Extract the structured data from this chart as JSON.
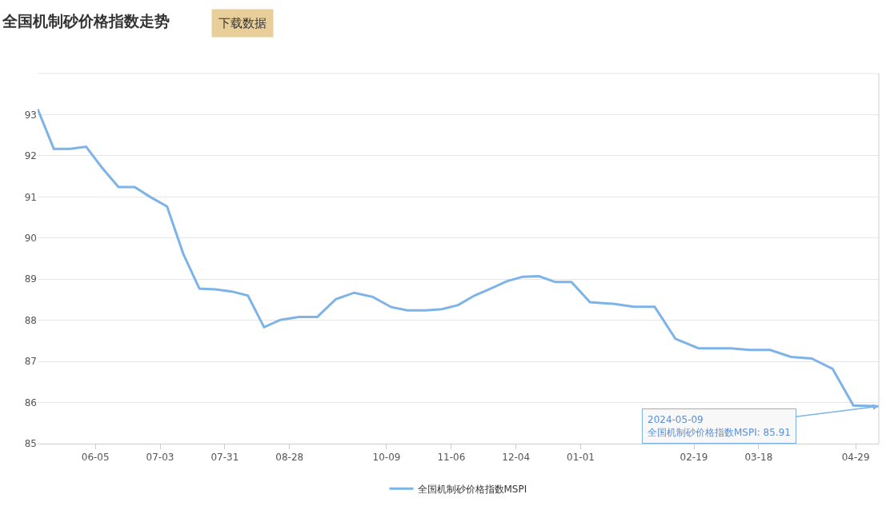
{
  "chart_data": {
    "type": "line",
    "title": "全国机制砂价格指数走势",
    "annotations": [
      "下载数据",
      {
        "text": "2024-05-09\n全国机制砂价格指数MSPI: 85.91",
        "x": "2024-05-09",
        "y": 85.91
      }
    ],
    "x": [
      "2023-05-11",
      "2023-05-18",
      "2023-05-25",
      "2023-06-01",
      "2023-06-08",
      "2023-06-15",
      "2023-06-22",
      "2023-06-29",
      "2023-07-06",
      "2023-07-13",
      "2023-07-20",
      "2023-07-27",
      "2023-08-03",
      "2023-08-10",
      "2023-08-17",
      "2023-08-24",
      "2023-09-01",
      "2023-09-09",
      "2023-09-17",
      "2023-09-25",
      "2023-10-03",
      "2023-10-11",
      "2023-10-18",
      "2023-10-26",
      "2023-11-02",
      "2023-11-09",
      "2023-11-16",
      "2023-11-23",
      "2023-11-30",
      "2023-12-07",
      "2023-12-14",
      "2023-12-21",
      "2023-12-28",
      "2024-01-05",
      "2024-01-15",
      "2024-01-24",
      "2024-02-02",
      "2024-02-11",
      "2024-02-21",
      "2024-02-28",
      "2024-03-06",
      "2024-03-14",
      "2024-03-23",
      "2024-04-01",
      "2024-04-10",
      "2024-04-19",
      "2024-04-28",
      "2024-05-09"
    ],
    "series": [
      {
        "name": "全国机制砂价格指数MSPI",
        "color": "#7eb3e8",
        "values": [
          93.14,
          92.17,
          92.17,
          92.22,
          91.7,
          91.24,
          91.24,
          90.99,
          90.77,
          89.62,
          88.77,
          88.75,
          88.7,
          88.6,
          87.83,
          88.01,
          88.08,
          88.08,
          88.51,
          88.67,
          88.57,
          88.32,
          88.24,
          88.24,
          88.27,
          88.37,
          88.6,
          88.77,
          88.95,
          89.06,
          89.07,
          88.93,
          88.93,
          88.44,
          88.4,
          88.33,
          88.33,
          87.55,
          87.32,
          87.32,
          87.32,
          87.28,
          87.28,
          87.11,
          87.07,
          86.82,
          85.93,
          85.91
        ]
      }
    ],
    "xlim": [
      "2023-05-11",
      "2024-05-09"
    ],
    "xticks": [
      {
        "value": "2023-06-05",
        "label": "06-05"
      },
      {
        "value": "2023-07-03",
        "label": "07-03"
      },
      {
        "value": "2023-07-31",
        "label": "07-31"
      },
      {
        "value": "2023-08-28",
        "label": "08-28"
      },
      {
        "value": "2023-10-09",
        "label": "10-09"
      },
      {
        "value": "2023-11-06",
        "label": "11-06"
      },
      {
        "value": "2023-12-04",
        "label": "12-04"
      },
      {
        "value": "2024-01-01",
        "label": "01-01"
      },
      {
        "value": "2024-02-19",
        "label": "02-19"
      },
      {
        "value": "2024-03-18",
        "label": "03-18"
      },
      {
        "value": "2024-04-29",
        "label": "04-29"
      }
    ],
    "ylim": [
      85,
      94
    ],
    "yticks": [
      85,
      86,
      87,
      88,
      89,
      90,
      91,
      92,
      93
    ],
    "grid": "y",
    "legend": "bottom",
    "marker": "none",
    "line_style": "solid"
  }
}
